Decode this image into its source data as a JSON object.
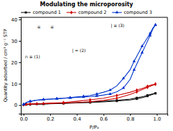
{
  "chart_data": {
    "type": "line",
    "title": "Modulating the microporosity",
    "xlabel": "P/P₀",
    "ylabel": "Quantity adsorbed / cm³ g⁻¹ STP",
    "xlim": [
      -0.02,
      1.08
    ],
    "ylim": [
      -4,
      41
    ],
    "xticks": [
      {
        "value": 0.0,
        "label": "0.0"
      },
      {
        "value": 0.2,
        "label": "0.2"
      },
      {
        "value": 0.4,
        "label": "0.4"
      },
      {
        "value": 0.6,
        "label": "0.6"
      },
      {
        "value": 0.8,
        "label": "0.8"
      },
      {
        "value": 1.0,
        "label": "1.0"
      }
    ],
    "yticks": [
      0,
      10,
      20,
      30,
      40
    ],
    "grid": false,
    "legend": "top",
    "series": [
      {
        "name": "compound 1",
        "color": "#111111",
        "marker": "square",
        "x": [
          0.0,
          0.02,
          0.05,
          0.1,
          0.15,
          0.2,
          0.3,
          0.4,
          0.5,
          0.6,
          0.7,
          0.8,
          0.85,
          0.9,
          0.93,
          0.96,
          0.99
        ],
        "values": [
          0.1,
          0.2,
          0.3,
          0.4,
          0.5,
          0.6,
          0.8,
          1.0,
          1.2,
          1.5,
          1.9,
          2.4,
          2.9,
          3.6,
          4.2,
          4.8,
          5.5
        ]
      },
      {
        "name": "compound 1",
        "color": "#111111",
        "marker": "square",
        "x": [
          0.99,
          0.96,
          0.93,
          0.9,
          0.85,
          0.8,
          0.7,
          0.6,
          0.5,
          0.4,
          0.3,
          0.2,
          0.1,
          0.05,
          0.02,
          0.0
        ],
        "values": [
          5.5,
          5.1,
          4.6,
          4.0,
          3.4,
          2.8,
          2.2,
          1.8,
          1.5,
          1.2,
          0.9,
          0.7,
          0.5,
          0.4,
          0.3,
          0.1
        ]
      },
      {
        "name": "compound 2",
        "color": "#cc0000",
        "marker": "diamond",
        "x": [
          0.0,
          0.02,
          0.05,
          0.1,
          0.15,
          0.2,
          0.3,
          0.4,
          0.5,
          0.6,
          0.7,
          0.8,
          0.85,
          0.9,
          0.93,
          0.96,
          0.99
        ],
        "values": [
          0.2,
          0.4,
          0.5,
          0.6,
          0.7,
          0.8,
          1.0,
          1.2,
          1.6,
          2.2,
          3.2,
          5.0,
          6.2,
          7.5,
          8.3,
          9.0,
          9.8
        ]
      },
      {
        "name": "compound 2",
        "color": "#cc0000",
        "marker": "diamond",
        "x": [
          0.99,
          0.96,
          0.93,
          0.9,
          0.85,
          0.8,
          0.7,
          0.6,
          0.5,
          0.4,
          0.3,
          0.2,
          0.1,
          0.05,
          0.02,
          0.0
        ],
        "values": [
          9.8,
          9.4,
          8.8,
          8.0,
          7.0,
          6.0,
          4.5,
          3.2,
          2.5,
          1.8,
          1.2,
          0.9,
          0.6,
          0.5,
          0.4,
          0.2
        ]
      },
      {
        "name": "compound 3",
        "color": "#0033cc",
        "marker": "triangle",
        "x": [
          0.0,
          0.02,
          0.05,
          0.1,
          0.15,
          0.2,
          0.25,
          0.3,
          0.35,
          0.4,
          0.45,
          0.5,
          0.55,
          0.6,
          0.65,
          0.7,
          0.75,
          0.8,
          0.83,
          0.86,
          0.89,
          0.92,
          0.95,
          0.97,
          0.99
        ],
        "values": [
          0.3,
          1.2,
          1.8,
          2.3,
          2.6,
          2.8,
          3.0,
          3.2,
          3.4,
          3.6,
          3.8,
          4.0,
          4.3,
          4.7,
          5.2,
          6.2,
          8.0,
          12.0,
          16.5,
          20.5,
          24.5,
          28.5,
          32.5,
          35.5,
          37.5
        ]
      },
      {
        "name": "compound 3",
        "color": "#0033cc",
        "marker": "triangle",
        "x": [
          0.99,
          0.97,
          0.95,
          0.92,
          0.89,
          0.86,
          0.83,
          0.8,
          0.75,
          0.7,
          0.65,
          0.6,
          0.55,
          0.5,
          0.45,
          0.4,
          0.35,
          0.3,
          0.25,
          0.2,
          0.15,
          0.1,
          0.05,
          0.02,
          0.0
        ],
        "values": [
          37.5,
          36.0,
          33.5,
          30.5,
          27.5,
          24.0,
          20.5,
          16.5,
          12.5,
          9.0,
          7.0,
          6.0,
          5.2,
          4.5,
          4.1,
          3.8,
          3.5,
          3.2,
          3.0,
          2.8,
          2.6,
          2.3,
          1.8,
          1.2,
          0.3
        ]
      }
    ],
    "annotations": [
      "≡",
      "≡",
      "∩ ≡",
      "(1)",
      "| =",
      "(2)",
      "| ≡",
      "(3)"
    ]
  }
}
